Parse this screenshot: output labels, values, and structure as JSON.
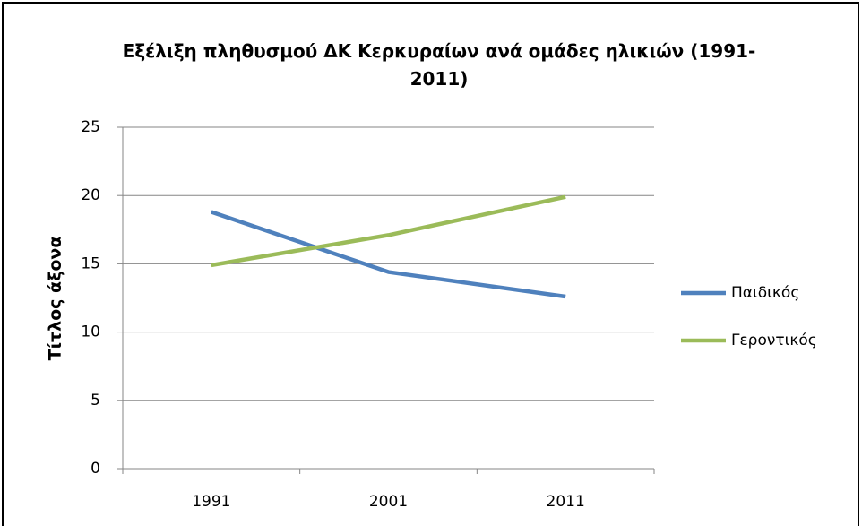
{
  "chart_data": {
    "type": "line",
    "title": "Εξέλιξη πληθυσμού ΔΚ Κερκυραίων ανά ομάδες ηλικιών (1991-2011)",
    "y_label": "Τίτλος άξονα",
    "categories": [
      "1991",
      "2001",
      "2011"
    ],
    "series": [
      {
        "name": "Παιδικός",
        "color": "#4f81bd",
        "values": [
          18.8,
          14.4,
          12.6
        ]
      },
      {
        "name": "Γεροντικός",
        "color": "#9bbb59",
        "values": [
          14.9,
          17.1,
          19.9
        ]
      }
    ],
    "ylim": [
      0,
      25
    ],
    "yticks": [
      0,
      5,
      10,
      15,
      20,
      25
    ],
    "grid": true,
    "legend": "right"
  }
}
